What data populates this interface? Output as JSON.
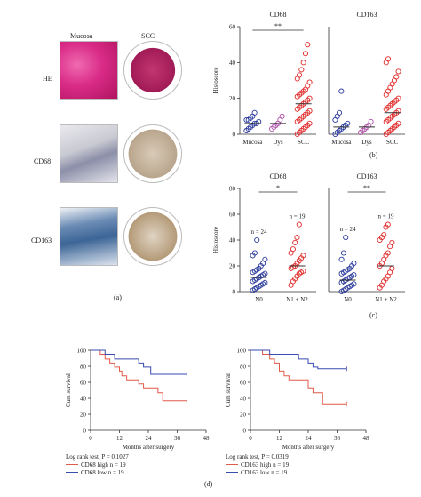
{
  "panel_a": {
    "col_labels": [
      "Mucosa",
      "SCC"
    ],
    "row_labels": [
      "HE",
      "CD68",
      "CD163"
    ],
    "caption": "(a)"
  },
  "panel_b_caption": "(b)",
  "panel_c_caption": "(c)",
  "panel_d_caption": "(d)",
  "chart_data": [
    {
      "type": "scatter",
      "panel": "b",
      "title": "CD68",
      "ylabel": "Histoscore",
      "categories": [
        "Mucosa",
        "Dys",
        "SCC"
      ],
      "ylim": [
        0,
        60
      ],
      "yticks": [
        0,
        20,
        40,
        60
      ],
      "annotation": "**",
      "colors": [
        "#2a3a9c",
        "#b04fa8",
        "#e02a2a"
      ],
      "points": [
        [
          2,
          3,
          4,
          5,
          6,
          6,
          7,
          8,
          8,
          9,
          10,
          12
        ],
        [
          3,
          4,
          5,
          6,
          8,
          10
        ],
        [
          0,
          1,
          2,
          3,
          4,
          5,
          6,
          7,
          8,
          9,
          10,
          11,
          12,
          13,
          14,
          15,
          16,
          17,
          18,
          19,
          20,
          21,
          22,
          23,
          24,
          25,
          27,
          29,
          31,
          33,
          36,
          40,
          45,
          50
        ]
      ],
      "means": [
        6,
        6,
        17
      ]
    },
    {
      "type": "scatter",
      "panel": "b",
      "title": "CD163",
      "categories": [
        "Mucosa",
        "Dys",
        "SCC"
      ],
      "ylim": [
        0,
        60
      ],
      "colors": [
        "#2a3a9c",
        "#b04fa8",
        "#e02a2a"
      ],
      "points": [
        [
          0,
          1,
          2,
          3,
          4,
          5,
          6,
          8,
          10,
          12,
          24
        ],
        [
          1,
          2,
          3,
          4,
          5,
          7
        ],
        [
          0,
          1,
          2,
          3,
          4,
          5,
          6,
          7,
          8,
          9,
          10,
          11,
          12,
          13,
          14,
          15,
          16,
          17,
          18,
          19,
          20,
          22,
          24,
          26,
          28,
          30,
          32,
          35,
          40,
          42
        ]
      ],
      "means": [
        4,
        4,
        12
      ]
    },
    {
      "type": "scatter",
      "panel": "c",
      "title": "CD68",
      "ylabel": "Histoscore",
      "categories": [
        "N0",
        "N1 + N2"
      ],
      "ylim": [
        0,
        80
      ],
      "yticks": [
        0,
        20,
        40,
        60,
        80
      ],
      "annotation": "*",
      "group_labels": [
        "n = 24",
        "n = 19"
      ],
      "colors": [
        "#2a3a9c",
        "#e02a2a"
      ],
      "points": [
        [
          1,
          2,
          3,
          4,
          5,
          6,
          7,
          8,
          9,
          10,
          11,
          12,
          13,
          14,
          15,
          16,
          17,
          18,
          20,
          22,
          25,
          28,
          30,
          40
        ],
        [
          5,
          8,
          10,
          12,
          14,
          15,
          16,
          18,
          19,
          20,
          22,
          24,
          26,
          28,
          30,
          33,
          38,
          42,
          52
        ]
      ],
      "means": [
        11,
        20
      ]
    },
    {
      "type": "scatter",
      "panel": "c",
      "title": "CD163",
      "categories": [
        "N0",
        "N1 + N2"
      ],
      "ylim": [
        0,
        80
      ],
      "annotation": "**",
      "group_labels": [
        "n = 24",
        "n = 19"
      ],
      "colors": [
        "#2a3a9c",
        "#e02a2a"
      ],
      "points": [
        [
          0,
          1,
          2,
          3,
          4,
          5,
          6,
          7,
          8,
          9,
          10,
          11,
          12,
          13,
          14,
          15,
          16,
          17,
          18,
          20,
          22,
          25,
          30,
          42
        ],
        [
          3,
          5,
          8,
          10,
          12,
          15,
          18,
          20,
          22,
          25,
          28,
          30,
          35,
          38,
          40,
          42,
          44,
          50,
          52
        ]
      ],
      "means": [
        9,
        20
      ]
    },
    {
      "type": "line",
      "panel": "d",
      "xlabel": "Months after surgery",
      "ylabel": "Cum survival",
      "xlim": [
        0,
        48
      ],
      "ylim": [
        0,
        100
      ],
      "xticks": [
        0,
        12,
        24,
        36,
        48
      ],
      "yticks": [
        0,
        20,
        40,
        60,
        80,
        100
      ],
      "stat_text": "Log rank test, P = 0.1027",
      "series": [
        {
          "name": "CD68 high n = 19",
          "color": "#e05a4a",
          "x": [
            0,
            4,
            6,
            8,
            10,
            12,
            13,
            15,
            20,
            22,
            24,
            28,
            30,
            40
          ],
          "y": [
            100,
            95,
            89,
            84,
            79,
            74,
            68,
            63,
            58,
            53,
            53,
            47,
            37,
            37
          ]
        },
        {
          "name": "CD68 low n = 19",
          "color": "#3a4bb0",
          "x": [
            0,
            6,
            8,
            10,
            12,
            20,
            22,
            25,
            30,
            40
          ],
          "y": [
            100,
            95,
            95,
            89,
            89,
            84,
            79,
            70,
            70,
            70
          ]
        }
      ]
    },
    {
      "type": "line",
      "panel": "d",
      "xlabel": "Months after surgery",
      "ylabel": "Cum survival",
      "xlim": [
        0,
        48
      ],
      "ylim": [
        0,
        100
      ],
      "xticks": [
        0,
        12,
        24,
        36,
        48
      ],
      "yticks": [
        0,
        20,
        40,
        60,
        80,
        100
      ],
      "stat_text": "Log rank test, P = 0.0319",
      "series": [
        {
          "name": "CD163 high n = 19",
          "color": "#e05a4a",
          "x": [
            0,
            5,
            8,
            10,
            12,
            14,
            16,
            18,
            24,
            26,
            30,
            40
          ],
          "y": [
            100,
            95,
            89,
            84,
            74,
            68,
            63,
            63,
            53,
            47,
            33,
            33
          ]
        },
        {
          "name": "CD163 low n = 19",
          "color": "#3a4bb0",
          "x": [
            0,
            8,
            12,
            20,
            24,
            26,
            28,
            40
          ],
          "y": [
            100,
            95,
            95,
            89,
            84,
            79,
            77,
            77
          ]
        }
      ]
    }
  ]
}
